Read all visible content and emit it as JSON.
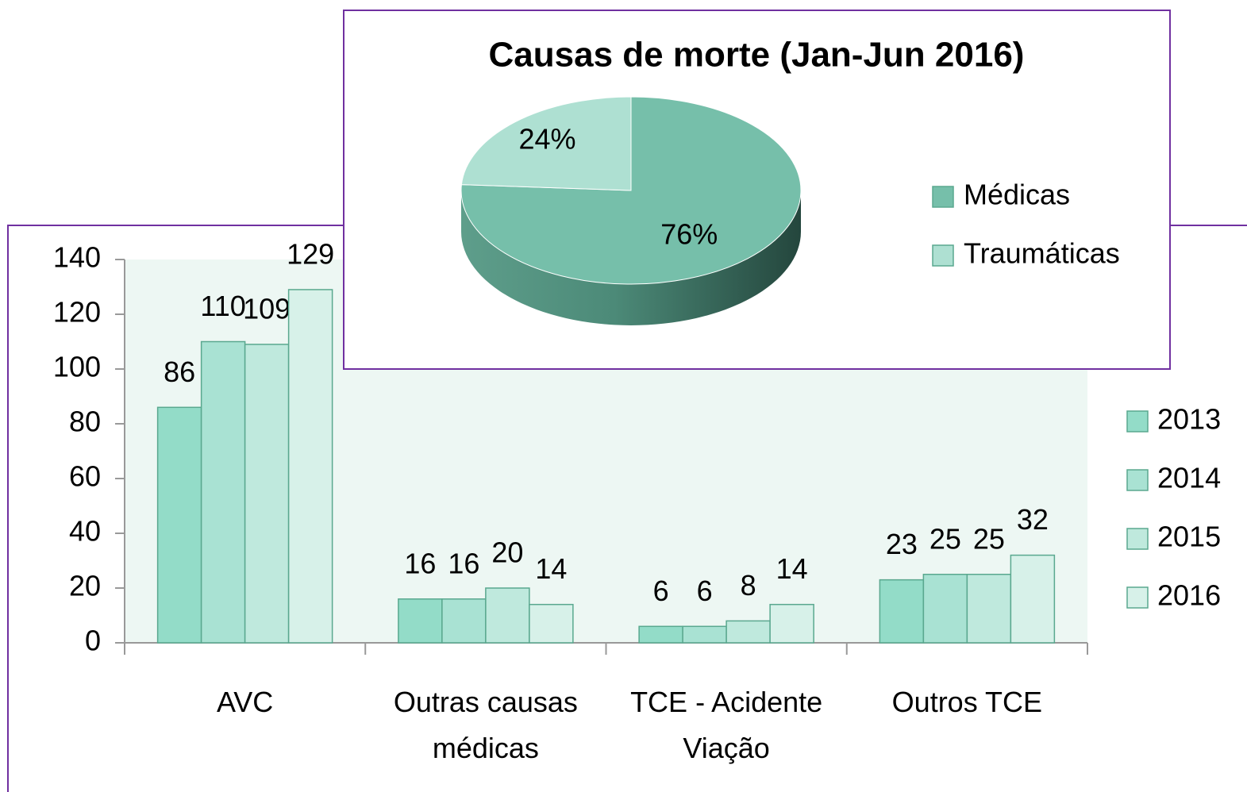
{
  "chart_data": [
    {
      "type": "bar",
      "categories": [
        "AVC",
        "Outras causas médicas",
        "TCE - Acidente Viação",
        "Outros TCE"
      ],
      "series": [
        {
          "name": "2013",
          "color": "#93dcc8",
          "values": [
            86,
            16,
            6,
            23
          ]
        },
        {
          "name": "2014",
          "color": "#a9e2d3",
          "values": [
            110,
            16,
            6,
            25
          ]
        },
        {
          "name": "2015",
          "color": "#bfe9dd",
          "values": [
            109,
            20,
            8,
            25
          ]
        },
        {
          "name": "2016",
          "color": "#d7f1e9",
          "values": [
            129,
            14,
            14,
            32
          ]
        }
      ],
      "ylim": [
        0,
        140
      ],
      "yticks": [
        0,
        20,
        40,
        60,
        80,
        100,
        120,
        140
      ],
      "legend": "right"
    },
    {
      "type": "pie",
      "title": "Causas de morte (Jan-Jun 2016)",
      "categories": [
        "Médicas",
        "Traumáticas"
      ],
      "values": [
        76,
        24
      ],
      "value_labels": [
        "76%",
        "24%"
      ],
      "colors": [
        "#76bfaa",
        "#aee0d2"
      ],
      "legend": "right"
    }
  ]
}
